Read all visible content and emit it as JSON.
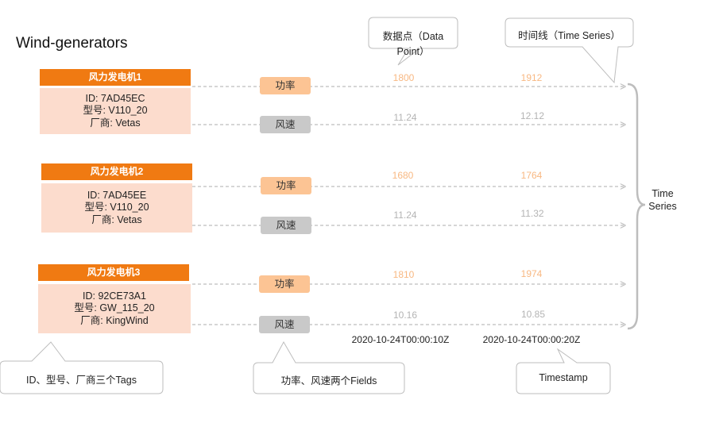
{
  "title": "Wind-generators",
  "generators": [
    {
      "header": "风力发电机1",
      "id": "ID:  7AD45EC",
      "model": "型号:  V110_20",
      "vendor": "厂商: Vetas",
      "power_field": "功率",
      "speed_field": "风速",
      "power_values": [
        "1800",
        "1912"
      ],
      "speed_values": [
        "11.24",
        "12.12"
      ]
    },
    {
      "header": "风力发电机2",
      "id": "ID: 7AD45EE",
      "model": "型号:  V110_20",
      "vendor": "厂商:  Vetas",
      "power_field": "功率",
      "speed_field": "风速",
      "power_values": [
        "1680",
        "1764"
      ],
      "speed_values": [
        "11.24",
        "11.32"
      ]
    },
    {
      "header": "风力发电机3",
      "id": "ID:  92CE73A1",
      "model": "型号:  GW_115_20",
      "vendor": "厂商:  KingWind",
      "power_field": "功率",
      "speed_field": "风速",
      "power_values": [
        "1810",
        "1974"
      ],
      "speed_values": [
        "10.16",
        "10.85"
      ]
    }
  ],
  "timestamps": [
    "2020-10-24T00:00:10Z",
    "2020-10-24T00:00:20Z"
  ],
  "time_series_label": "Time Series",
  "callouts": {
    "data_point": "数据点（Data  Point）",
    "time_series": "时间线（Time  Series）",
    "tags": "ID、型号、厂商三个Tags",
    "fields": "功率、风速两个Fields",
    "timestamp": "Timestamp"
  },
  "colors": {
    "header": "#f07a12",
    "body": "#fcdccd",
    "power": "#fcc494",
    "speed": "#c9c9c9"
  }
}
